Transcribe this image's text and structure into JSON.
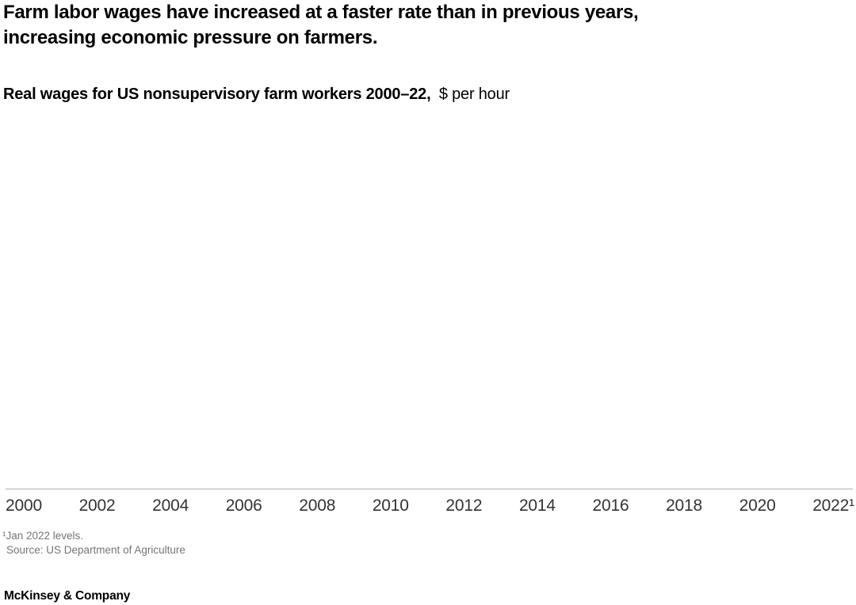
{
  "header": {
    "title_lines": [
      "Farm labor wages have increased at a faster rate than in previous years,",
      "increasing economic pressure on farmers."
    ],
    "subtitle_bold": "Real wages for US nonsupervisory farm workers 2000–22,",
    "subtitle_unit": "$ per hour"
  },
  "chart_data": {
    "type": "line",
    "title": "Real wages for US nonsupervisory farm workers 2000–22",
    "ylabel": "$ per hour",
    "x_tick_labels": [
      "2000",
      "2002",
      "2004",
      "2006",
      "2008",
      "2010",
      "2012",
      "2014",
      "2016",
      "2018",
      "2020",
      "2022¹"
    ],
    "x_range": [
      2000,
      2022
    ],
    "series": [],
    "plot_area_empty": true,
    "grid": "off",
    "legend": "none"
  },
  "footnotes": {
    "note": "¹Jan 2022 levels.",
    "source": "Source: US Department of Agriculture"
  },
  "footer": {
    "brand": "McKinsey & Company"
  },
  "colors": {
    "background": "#ffffff",
    "title_text": "#000000",
    "axis_line": "#b1b1b1",
    "tick_label_text": "#333333",
    "footnote_text": "#757575"
  }
}
